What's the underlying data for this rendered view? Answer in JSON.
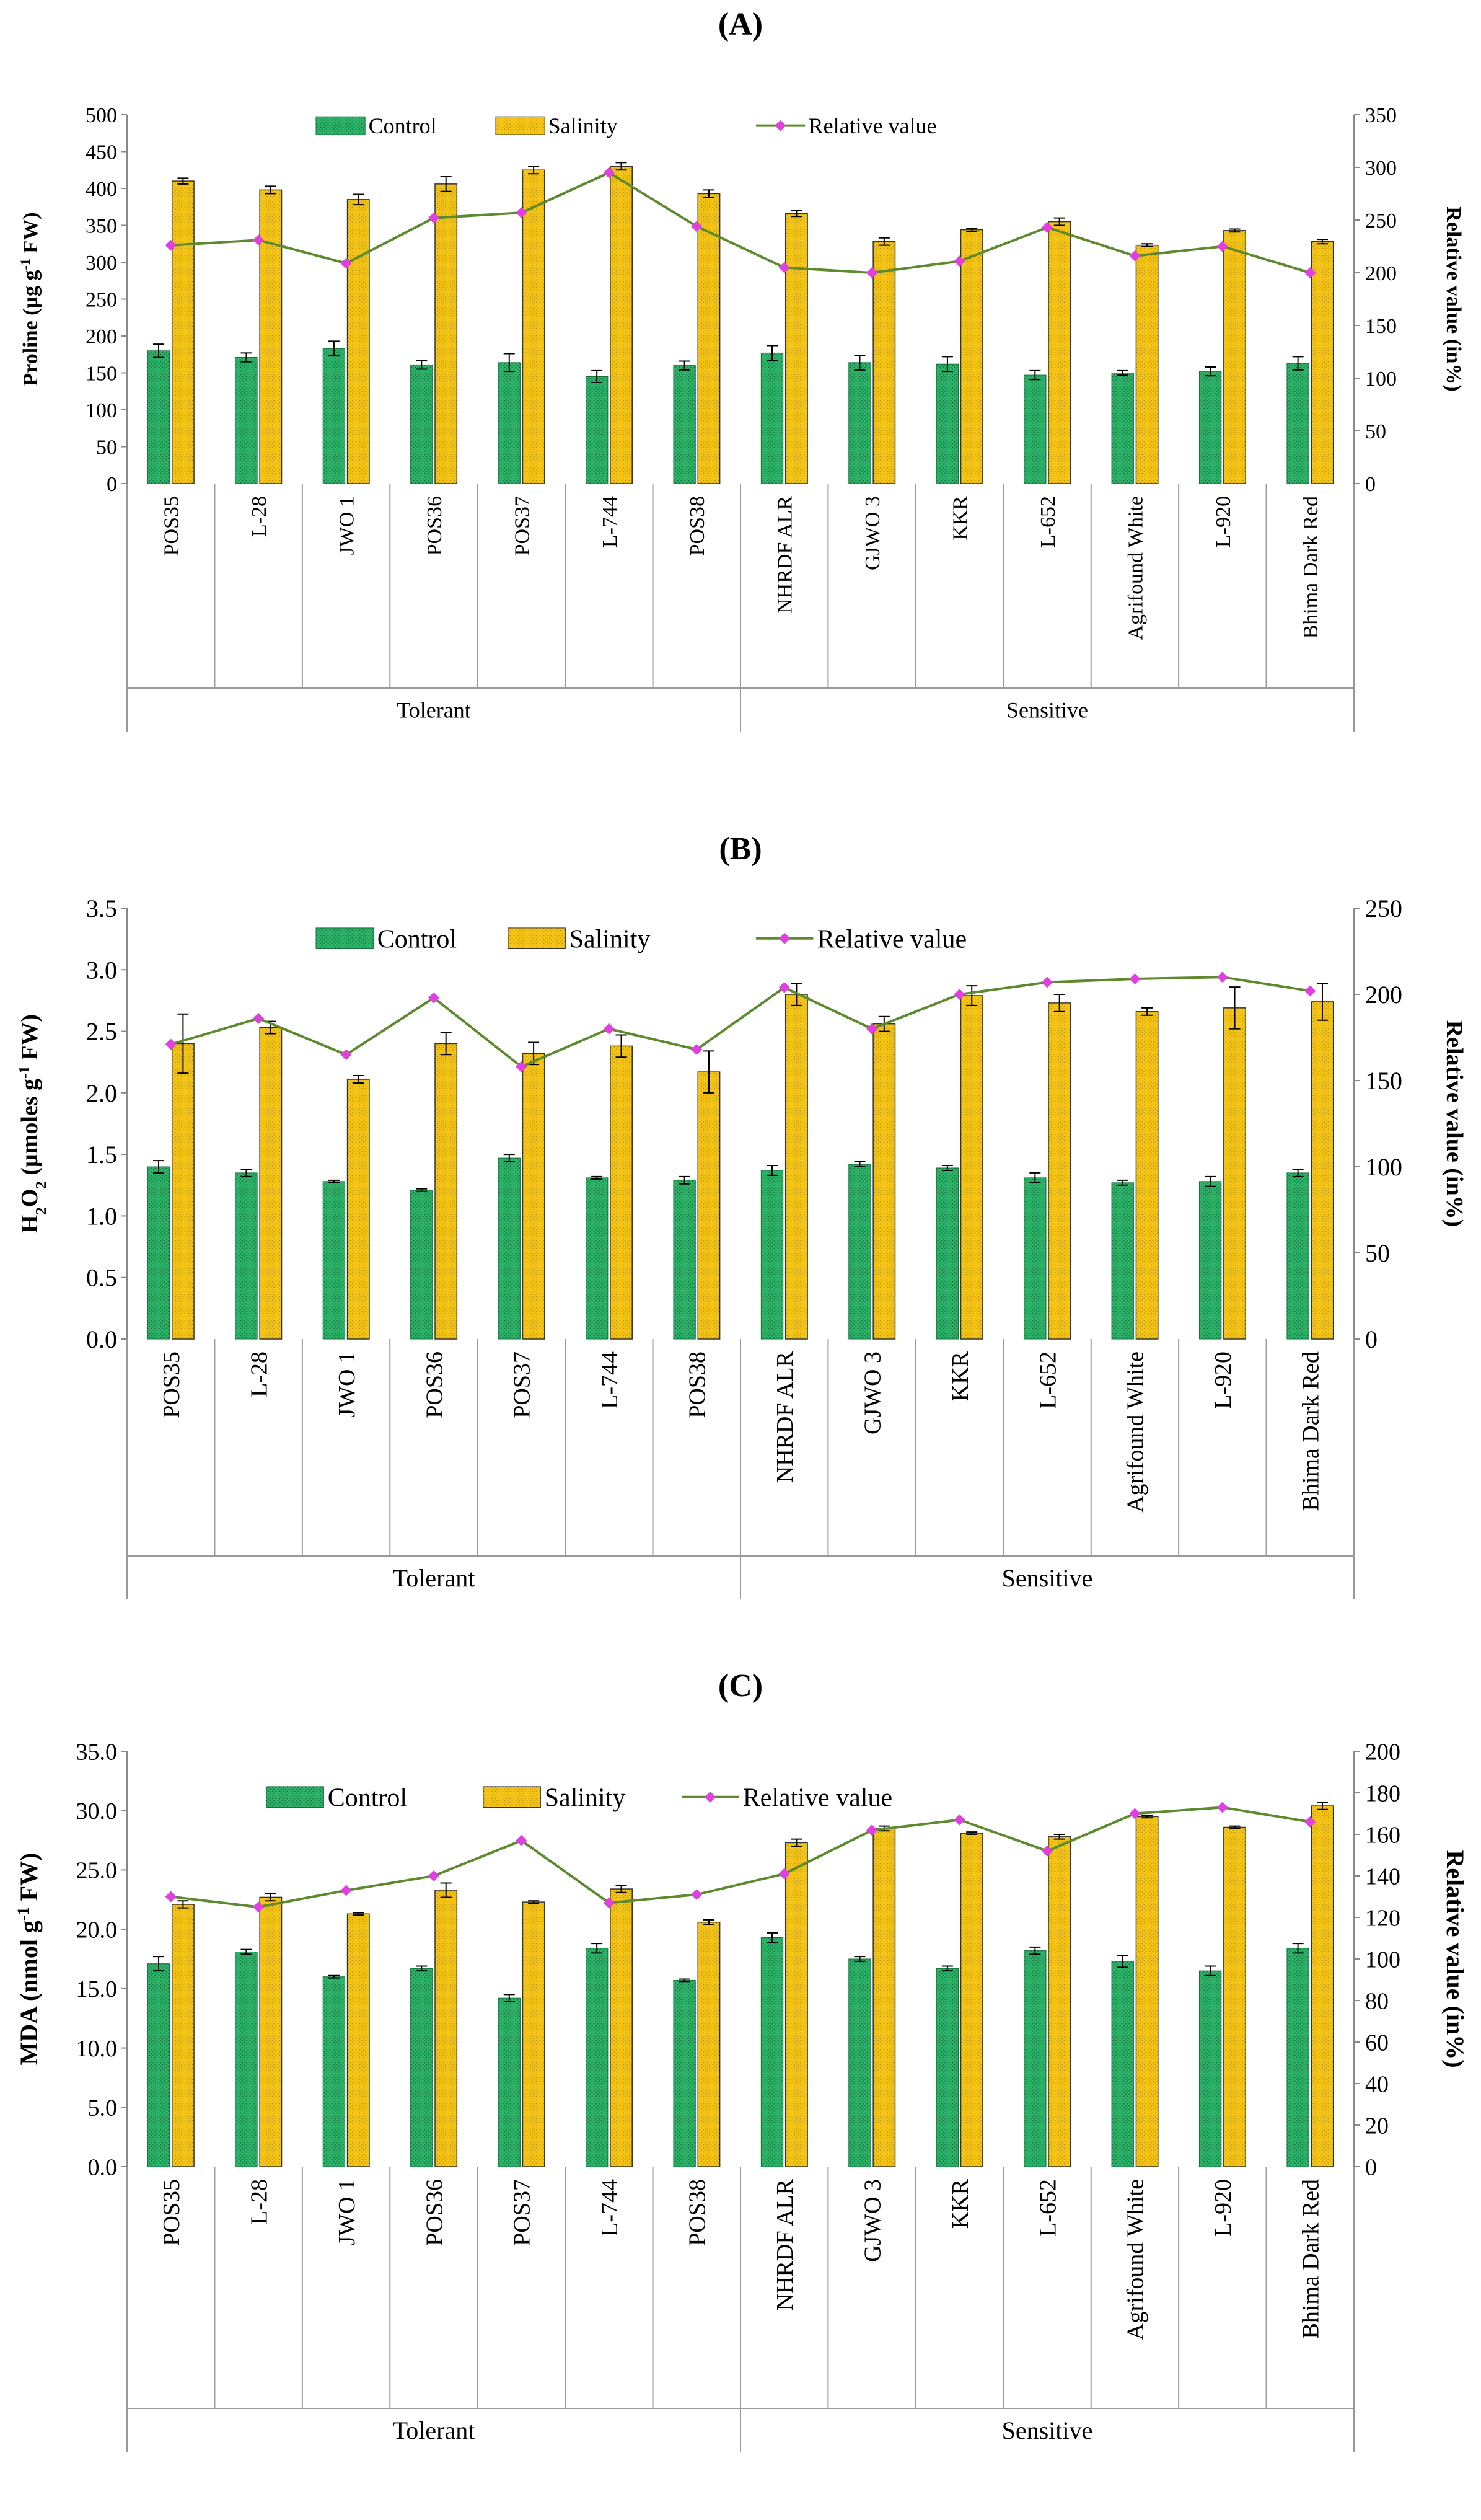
{
  "chart_data": [
    {
      "panel_label": "(A)",
      "type": "bar",
      "categories": [
        "POS35",
        "L-28",
        "JWO 1",
        "POS36",
        "POS37",
        "L-744",
        "POS38",
        "NHRDF ALR",
        "GJWO 3",
        "KKR",
        "L-652",
        "Agrifound White",
        "L-920",
        "Bhima Dark Red"
      ],
      "groups": [
        {
          "label": "Tolerant",
          "count": 7
        },
        {
          "label": "Sensitive",
          "count": 7
        }
      ],
      "series": [
        {
          "name": "Control",
          "kind": "bar",
          "values": [
            180,
            171,
            183,
            161,
            164,
            145,
            160,
            177,
            164,
            162,
            147,
            150,
            152,
            163
          ],
          "errors": [
            9,
            6,
            10,
            6,
            12,
            8,
            6,
            10,
            10,
            10,
            6,
            3,
            6,
            9
          ]
        },
        {
          "name": "Salinity",
          "kind": "bar",
          "values": [
            410,
            398,
            385,
            406,
            425,
            430,
            393,
            366,
            328,
            344,
            355,
            323,
            343,
            328
          ],
          "errors": [
            4,
            5,
            7,
            10,
            5,
            5,
            5,
            4,
            5,
            2,
            5,
            2,
            2,
            3
          ]
        },
        {
          "name": "Relative value",
          "kind": "line",
          "axis": "right",
          "values": [
            226,
            231,
            209,
            252,
            257,
            295,
            244,
            205,
            200,
            211,
            243,
            216,
            225,
            200
          ]
        }
      ],
      "ylabel": "Proline (µg g-1 FW)",
      "y2label": "Relative value (in%)",
      "ylim": [
        0,
        500
      ],
      "yticks": [
        0,
        50,
        100,
        150,
        200,
        250,
        300,
        350,
        400,
        450,
        500
      ],
      "y2lim": [
        0,
        350
      ],
      "y2ticks": [
        0,
        50,
        100,
        150,
        200,
        250,
        300,
        350
      ],
      "legend": [
        "Control",
        "Salinity",
        "Relative value"
      ],
      "legend_position": "top"
    },
    {
      "panel_label": "(B)",
      "type": "bar",
      "categories": [
        "POS35",
        "L-28",
        "JWO 1",
        "POS36",
        "POS37",
        "L-744",
        "POS38",
        "NHRDF ALR",
        "GJWO 3",
        "KKR",
        "L-652",
        "Agrifound White",
        "L-920",
        "Bhima Dark Red"
      ],
      "groups": [
        {
          "label": "Tolerant",
          "count": 7
        },
        {
          "label": "Sensitive",
          "count": 7
        }
      ],
      "series": [
        {
          "name": "Control",
          "kind": "bar",
          "values": [
            1.4,
            1.35,
            1.28,
            1.21,
            1.47,
            1.31,
            1.29,
            1.37,
            1.42,
            1.39,
            1.31,
            1.27,
            1.28,
            1.35
          ],
          "errors": [
            0.05,
            0.03,
            0.01,
            0.01,
            0.03,
            0.01,
            0.03,
            0.04,
            0.02,
            0.02,
            0.04,
            0.02,
            0.04,
            0.03
          ]
        },
        {
          "name": "Salinity",
          "kind": "bar",
          "values": [
            2.4,
            2.53,
            2.11,
            2.4,
            2.32,
            2.38,
            2.17,
            2.8,
            2.56,
            2.79,
            2.73,
            2.66,
            2.69,
            2.74
          ],
          "errors": [
            0.24,
            0.05,
            0.03,
            0.09,
            0.09,
            0.09,
            0.17,
            0.09,
            0.06,
            0.08,
            0.07,
            0.03,
            0.17,
            0.15
          ]
        },
        {
          "name": "Relative value",
          "kind": "line",
          "axis": "right",
          "values": [
            171,
            186,
            165,
            198,
            158,
            180,
            168,
            204,
            180,
            200,
            207,
            209,
            210,
            202
          ]
        }
      ],
      "ylabel": "H2O2 (µmoles g-1 FW)",
      "y2label": "Relative value (in%)",
      "ylim": [
        0,
        3.5
      ],
      "yticks": [
        "0.0",
        "0.5",
        "1.0",
        "1.5",
        "2.0",
        "2.5",
        "3.0",
        "3.5"
      ],
      "y2lim": [
        0,
        250
      ],
      "y2ticks": [
        0,
        50,
        100,
        150,
        200,
        250
      ],
      "legend": [
        "Control",
        "Salinity",
        "Relative value"
      ],
      "legend_position": "top"
    },
    {
      "panel_label": "(C)",
      "type": "bar",
      "categories": [
        "POS35",
        "L-28",
        "JWO 1",
        "POS36",
        "POS37",
        "L-744",
        "POS38",
        "NHRDF ALR",
        "GJWO 3",
        "KKR",
        "L-652",
        "Agrifound White",
        "L-920",
        "Bhima Dark Red"
      ],
      "groups": [
        {
          "label": "Tolerant",
          "count": 7
        },
        {
          "label": "Sensitive",
          "count": 7
        }
      ],
      "series": [
        {
          "name": "Control",
          "kind": "bar",
          "values": [
            17.1,
            18.1,
            16.0,
            16.7,
            14.2,
            18.4,
            15.7,
            19.3,
            17.5,
            16.7,
            18.2,
            17.3,
            16.5,
            18.4
          ],
          "errors": [
            0.6,
            0.2,
            0.1,
            0.2,
            0.3,
            0.4,
            0.1,
            0.4,
            0.2,
            0.2,
            0.3,
            0.5,
            0.4,
            0.4
          ]
        },
        {
          "name": "Salinity",
          "kind": "bar",
          "values": [
            22.1,
            22.7,
            21.3,
            23.3,
            22.3,
            23.4,
            20.6,
            27.3,
            28.5,
            28.1,
            27.8,
            29.5,
            28.6,
            30.4
          ],
          "errors": [
            0.3,
            0.3,
            0.1,
            0.6,
            0.1,
            0.3,
            0.2,
            0.3,
            0.2,
            0.1,
            0.2,
            0.1,
            0.1,
            0.3
          ]
        },
        {
          "name": "Relative value",
          "kind": "line",
          "axis": "right",
          "values": [
            130,
            125,
            133,
            140,
            157,
            127,
            131,
            141,
            162,
            167,
            152,
            170,
            173,
            166
          ]
        }
      ],
      "ylabel": "MDA (nmol g-1 FW)",
      "y2label": "Relative value (in%)",
      "ylim": [
        0,
        35
      ],
      "yticks": [
        "0.0",
        "5.0",
        "10.0",
        "15.0",
        "20.0",
        "25.0",
        "30.0",
        "35.0"
      ],
      "y2lim": [
        0,
        200
      ],
      "y2ticks": [
        0,
        20,
        40,
        60,
        80,
        100,
        120,
        140,
        160,
        180,
        200
      ],
      "legend": [
        "Control",
        "Salinity",
        "Relative value"
      ],
      "legend_position": "top"
    }
  ],
  "colors": {
    "control": "#2eb46a",
    "control_dark": "#13703c",
    "salinity": "#f5c518",
    "salinity_dark": "#b88d00",
    "line": "#5d8a2e",
    "marker": "#e040e0"
  }
}
